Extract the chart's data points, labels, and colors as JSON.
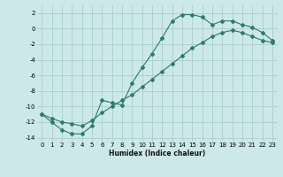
{
  "xlabel": "Humidex (Indice chaleur)",
  "background_color": "#cce8e8",
  "grid_color": "#aacece",
  "line_color": "#2d7a70",
  "xlim": [
    -0.5,
    23.5
  ],
  "ylim": [
    -14.5,
    3.0
  ],
  "xticks": [
    0,
    1,
    2,
    3,
    4,
    5,
    6,
    7,
    8,
    9,
    10,
    11,
    12,
    13,
    14,
    15,
    16,
    17,
    18,
    19,
    20,
    21,
    22,
    23
  ],
  "yticks": [
    -14,
    -12,
    -10,
    -8,
    -6,
    -4,
    -2,
    0,
    2
  ],
  "curve1_x": [
    0,
    1,
    2,
    3,
    4,
    5,
    6,
    7,
    8,
    9,
    10,
    11,
    12,
    13,
    14,
    15,
    16,
    17,
    18,
    19,
    20,
    21,
    22,
    23
  ],
  "curve1_y": [
    -11.0,
    -12.0,
    -13.0,
    -13.5,
    -13.5,
    -12.5,
    -9.2,
    -9.5,
    -9.8,
    -7.0,
    -5.0,
    -3.2,
    -1.2,
    1.0,
    1.8,
    1.8,
    1.5,
    0.5,
    1.0,
    1.0,
    0.5,
    0.2,
    -0.5,
    -1.5
  ],
  "curve2_x": [
    0,
    1,
    2,
    3,
    4,
    5,
    6,
    7,
    8,
    9,
    10,
    11,
    12,
    13,
    14,
    15,
    16,
    17,
    18,
    19,
    20,
    21,
    22,
    23
  ],
  "curve2_y": [
    -11.0,
    -11.5,
    -12.0,
    -12.2,
    -12.5,
    -11.8,
    -10.8,
    -10.0,
    -9.2,
    -8.5,
    -7.5,
    -6.5,
    -5.5,
    -4.5,
    -3.5,
    -2.5,
    -1.8,
    -1.0,
    -0.5,
    -0.2,
    -0.5,
    -1.0,
    -1.5,
    -1.8
  ],
  "xlabel_fontsize": 5.5,
  "xlabel_fontweight": "bold",
  "tick_fontsize": 5.0
}
